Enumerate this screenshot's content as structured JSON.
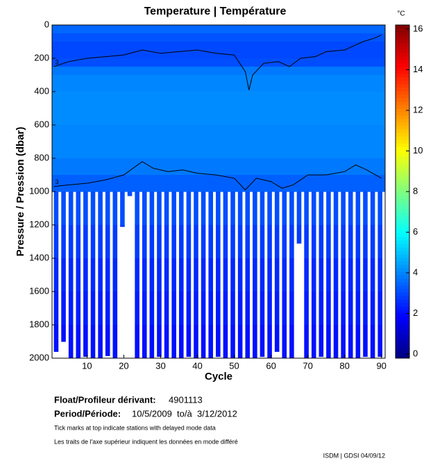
{
  "chart_data": {
    "type": "contour",
    "title": "Temperature | Température",
    "x_label": "Cycle",
    "y_label": "Pressure / Pression (dbar)",
    "xlim": [
      0.5,
      91
    ],
    "xticks": [
      10,
      20,
      30,
      40,
      50,
      60,
      70,
      80,
      90
    ],
    "ylim": [
      2000,
      0
    ],
    "yticks": [
      0,
      200,
      400,
      600,
      800,
      1000,
      1200,
      1400,
      1600,
      1800,
      2000
    ],
    "colorbar": {
      "unit": "°C",
      "clim": [
        -0.2,
        16.2
      ],
      "ticks": [
        0,
        2,
        4,
        6,
        8,
        10,
        12,
        14,
        16
      ],
      "colormap": "jet"
    },
    "field": {
      "pressure": [
        0,
        50,
        100,
        150,
        200,
        250,
        300,
        400,
        600,
        800,
        900,
        1000,
        1200,
        1400,
        1600,
        1800,
        2000
      ],
      "temperature": [
        3.5,
        3.2,
        3,
        3,
        3.1,
        3.8,
        4,
        4.1,
        4,
        3.8,
        3.4,
        3.1,
        2.8,
        2.5,
        2.3,
        2.1,
        1.9
      ]
    },
    "profiles": {
      "cycle": [
        1,
        3,
        5,
        7,
        9,
        11,
        13,
        15,
        17,
        19,
        21,
        23,
        25,
        27,
        29,
        31,
        33,
        35,
        37,
        39,
        41,
        43,
        45,
        47,
        49,
        51,
        53,
        55,
        57,
        59,
        61,
        63,
        65,
        67,
        69,
        71,
        73,
        75,
        77,
        79,
        81,
        83,
        85,
        87,
        89
      ],
      "max_pressure": [
        1960,
        1900,
        2000,
        2000,
        1990,
        2000,
        2000,
        1985,
        2000,
        1210,
        1025,
        2000,
        2000,
        2000,
        1990,
        2000,
        2000,
        2000,
        1990,
        2000,
        2000,
        2000,
        1990,
        2000,
        2000,
        2000,
        2000,
        2000,
        1990,
        2000,
        1960,
        2000,
        2000,
        1310,
        2000,
        2000,
        1990,
        2000,
        2000,
        2000,
        2000,
        2000,
        1990,
        2000,
        1990
      ]
    },
    "contours": [
      {
        "level": 3,
        "cycle": [
          1,
          5,
          10,
          15,
          20,
          25,
          30,
          35,
          40,
          45,
          50,
          53,
          54,
          55,
          58,
          62,
          65,
          68,
          72,
          75,
          80,
          85,
          88,
          90
        ],
        "pressure": [
          250,
          220,
          200,
          190,
          180,
          150,
          170,
          160,
          150,
          170,
          180,
          280,
          390,
          300,
          230,
          220,
          250,
          200,
          190,
          160,
          150,
          100,
          80,
          60
        ]
      },
      {
        "level": 3,
        "cycle": [
          1,
          5,
          10,
          15,
          20,
          25,
          28,
          32,
          36,
          40,
          45,
          50,
          53,
          56,
          60,
          63,
          66,
          70,
          75,
          80,
          83,
          86,
          90
        ],
        "pressure": [
          970,
          960,
          950,
          930,
          900,
          820,
          860,
          880,
          870,
          890,
          900,
          920,
          990,
          920,
          940,
          980,
          960,
          900,
          900,
          880,
          840,
          870,
          920
        ]
      }
    ]
  },
  "info": {
    "float_label": "Float/Profileur dérivant:",
    "float_id": "4901113",
    "period_label": "Period/Période:",
    "period": "10/5/2009  to/à  3/12/2012",
    "note_en": "Tick marks at top indicate stations with delayed mode data",
    "note_fr": "Les traits de l'axe supérieur indiquent les données en mode différé",
    "credit": "ISDM | GDSI 04/09/12"
  }
}
